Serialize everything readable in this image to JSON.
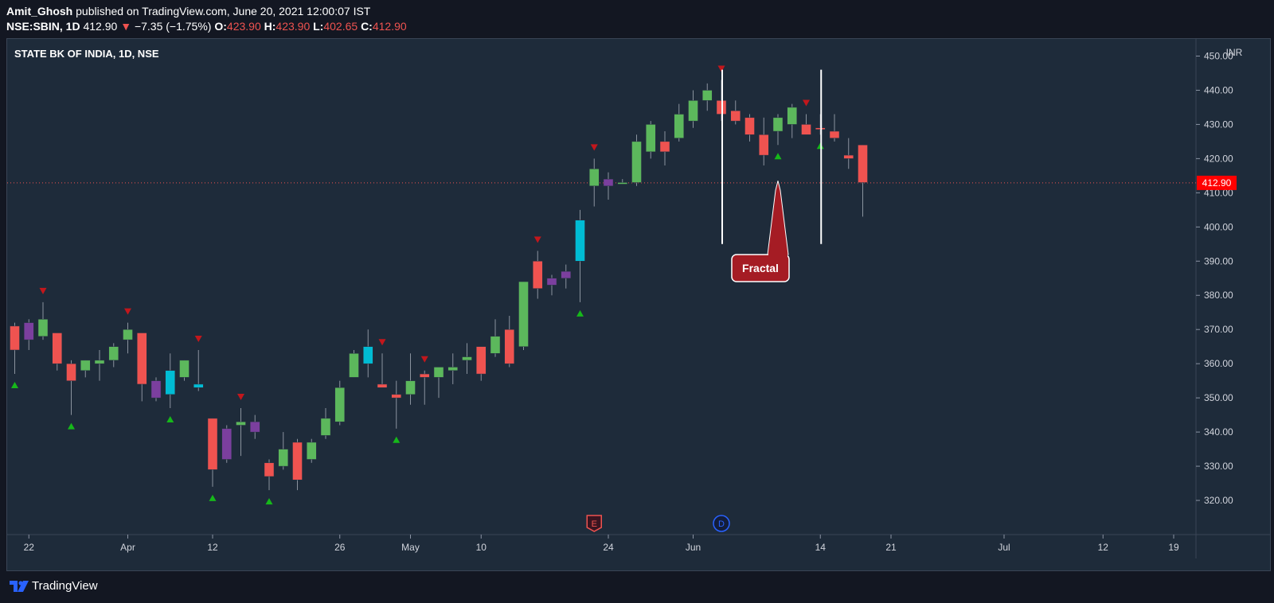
{
  "header": {
    "author": "Amit_Ghosh",
    "published_text": "published on TradingView.com, June 20, 2021 12:00:07 IST",
    "symbol": "NSE:SBIN, 1D",
    "last": "412.90",
    "change": "−7.35 (−1.75%)",
    "open_label": "O:",
    "open": "423.90",
    "high_label": "H:",
    "high": "423.90",
    "low_label": "L:",
    "low": "402.65",
    "close_label": "C:",
    "close": "412.90"
  },
  "footer": {
    "brand": "TradingView"
  },
  "colors": {
    "up": "#5cb85c",
    "down": "#ef5350",
    "purple": "#7b3f9e",
    "cyan": "#00bcd4",
    "bg": "#1e2b3a",
    "grid_text": "#d1d4dc",
    "price_tag": "#ff0000",
    "fractal_up": "#16b81a",
    "fractal_down": "#c2171c",
    "callout": "#a51c24"
  },
  "chart_data": {
    "type": "candlestick",
    "title": "STATE BK OF INDIA, 1D, NSE",
    "currency": "INR",
    "ylim": [
      310,
      455
    ],
    "y_ticks": [
      320,
      330,
      340,
      350,
      360,
      370,
      380,
      390,
      400,
      410,
      420,
      430,
      440,
      450
    ],
    "y_tick_labels": [
      "320.00",
      "330.00",
      "340.00",
      "350.00",
      "360.00",
      "370.00",
      "380.00",
      "390.00",
      "400.00",
      "410.00",
      "420.00",
      "430.00",
      "440.00",
      "450.00"
    ],
    "x_ticks": [
      {
        "label": "22",
        "index": 1
      },
      {
        "label": "Apr",
        "index": 8
      },
      {
        "label": "12",
        "index": 14
      },
      {
        "label": "26",
        "index": 23
      },
      {
        "label": "May",
        "index": 28
      },
      {
        "label": "10",
        "index": 33
      },
      {
        "label": "24",
        "index": 42
      },
      {
        "label": "Jun",
        "index": 48
      },
      {
        "label": "14",
        "index": 57
      },
      {
        "label": "21",
        "index": 62
      },
      {
        "label": "Jul",
        "index": 70
      },
      {
        "label": "12",
        "index": 77
      },
      {
        "label": "19",
        "index": 82
      }
    ],
    "last_price": 412.9,
    "last_price_label": "412.90",
    "candles": [
      {
        "o": 371,
        "h": 372,
        "l": 357,
        "c": 364,
        "k": "d"
      },
      {
        "o": 367,
        "h": 373,
        "l": 364,
        "c": 372,
        "k": "p"
      },
      {
        "o": 368,
        "h": 378,
        "l": 367,
        "c": 373,
        "k": "u"
      },
      {
        "o": 369,
        "h": 369,
        "l": 358,
        "c": 360,
        "k": "d"
      },
      {
        "o": 360,
        "h": 361,
        "l": 345,
        "c": 355,
        "k": "d"
      },
      {
        "o": 358,
        "h": 361,
        "l": 356,
        "c": 361,
        "k": "u"
      },
      {
        "o": 360,
        "h": 364,
        "l": 355,
        "c": 361,
        "k": "u"
      },
      {
        "o": 361,
        "h": 366,
        "l": 359,
        "c": 365,
        "k": "u"
      },
      {
        "o": 367,
        "h": 372,
        "l": 363,
        "c": 370,
        "k": "u"
      },
      {
        "o": 369,
        "h": 369,
        "l": 349,
        "c": 354,
        "k": "d"
      },
      {
        "o": 355,
        "h": 356,
        "l": 349,
        "c": 350,
        "k": "p"
      },
      {
        "o": 351,
        "h": 363,
        "l": 347,
        "c": 358,
        "k": "c"
      },
      {
        "o": 356,
        "h": 361,
        "l": 355,
        "c": 361,
        "k": "u"
      },
      {
        "o": 354,
        "h": 364,
        "l": 352,
        "c": 353,
        "k": "c"
      },
      {
        "o": 344,
        "h": 344,
        "l": 324,
        "c": 329,
        "k": "d"
      },
      {
        "o": 341,
        "h": 342,
        "l": 331,
        "c": 332,
        "k": "p"
      },
      {
        "o": 342,
        "h": 347,
        "l": 333,
        "c": 343,
        "k": "u"
      },
      {
        "o": 343,
        "h": 345,
        "l": 338,
        "c": 340,
        "k": "p"
      },
      {
        "o": 331,
        "h": 332,
        "l": 323,
        "c": 327,
        "k": "d"
      },
      {
        "o": 330,
        "h": 340,
        "l": 329,
        "c": 335,
        "k": "u"
      },
      {
        "o": 337,
        "h": 338,
        "l": 323,
        "c": 326,
        "k": "d"
      },
      {
        "o": 332,
        "h": 338,
        "l": 331,
        "c": 337,
        "k": "u"
      },
      {
        "o": 339,
        "h": 347,
        "l": 338,
        "c": 344,
        "k": "u"
      },
      {
        "o": 343,
        "h": 355,
        "l": 342,
        "c": 353,
        "k": "u"
      },
      {
        "o": 356,
        "h": 364,
        "l": 356,
        "c": 363,
        "k": "u"
      },
      {
        "o": 360,
        "h": 370,
        "l": 356,
        "c": 365,
        "k": "c"
      },
      {
        "o": 353,
        "h": 363,
        "l": 353,
        "c": 354,
        "k": "d"
      },
      {
        "o": 350,
        "h": 355,
        "l": 341,
        "c": 351,
        "k": "d"
      },
      {
        "o": 351,
        "h": 363,
        "l": 348,
        "c": 355,
        "k": "u"
      },
      {
        "o": 357,
        "h": 358,
        "l": 348,
        "c": 356,
        "k": "d"
      },
      {
        "o": 356,
        "h": 359,
        "l": 350,
        "c": 359,
        "k": "u"
      },
      {
        "o": 358,
        "h": 363,
        "l": 354,
        "c": 359,
        "k": "u"
      },
      {
        "o": 361,
        "h": 366,
        "l": 357,
        "c": 362,
        "k": "u"
      },
      {
        "o": 365,
        "h": 365,
        "l": 355,
        "c": 357,
        "k": "d"
      },
      {
        "o": 363,
        "h": 373,
        "l": 362,
        "c": 368,
        "k": "u"
      },
      {
        "o": 370,
        "h": 374,
        "l": 359,
        "c": 360,
        "k": "d"
      },
      {
        "o": 365,
        "h": 384,
        "l": 364,
        "c": 384,
        "k": "u"
      },
      {
        "o": 390,
        "h": 393,
        "l": 379,
        "c": 382,
        "k": "d"
      },
      {
        "o": 385,
        "h": 386,
        "l": 380,
        "c": 383,
        "k": "p"
      },
      {
        "o": 387,
        "h": 389,
        "l": 382,
        "c": 385,
        "k": "p"
      },
      {
        "o": 390,
        "h": 405,
        "l": 378,
        "c": 402,
        "k": "c"
      },
      {
        "o": 412,
        "h": 420,
        "l": 406,
        "c": 417,
        "k": "u"
      },
      {
        "o": 414,
        "h": 416,
        "l": 408,
        "c": 412,
        "k": "p"
      },
      {
        "o": 413,
        "h": 414,
        "l": 413,
        "c": 413,
        "k": "u"
      },
      {
        "o": 413,
        "h": 427,
        "l": 412,
        "c": 425,
        "k": "u"
      },
      {
        "o": 422,
        "h": 431,
        "l": 420,
        "c": 430,
        "k": "u"
      },
      {
        "o": 425,
        "h": 428,
        "l": 418,
        "c": 422,
        "k": "d"
      },
      {
        "o": 426,
        "h": 436,
        "l": 425,
        "c": 433,
        "k": "u"
      },
      {
        "o": 431,
        "h": 440,
        "l": 429,
        "c": 437,
        "k": "u"
      },
      {
        "o": 437,
        "h": 442,
        "l": 434,
        "c": 440,
        "k": "u"
      },
      {
        "o": 437,
        "h": 443,
        "l": 431,
        "c": 433,
        "k": "d"
      },
      {
        "o": 434,
        "h": 437,
        "l": 430,
        "c": 431,
        "k": "d"
      },
      {
        "o": 432,
        "h": 433,
        "l": 425,
        "c": 427,
        "k": "d"
      },
      {
        "o": 427,
        "h": 432,
        "l": 418,
        "c": 421,
        "k": "d"
      },
      {
        "o": 428,
        "h": 433,
        "l": 424,
        "c": 432,
        "k": "u"
      },
      {
        "o": 430,
        "h": 436,
        "l": 426,
        "c": 435,
        "k": "u"
      },
      {
        "o": 430,
        "h": 433,
        "l": 427,
        "c": 427,
        "k": "d"
      },
      {
        "o": 429,
        "h": 433,
        "l": 427,
        "c": 429,
        "k": "d"
      },
      {
        "o": 428,
        "h": 433,
        "l": 425,
        "c": 426,
        "k": "d"
      },
      {
        "o": 421,
        "h": 426,
        "l": 417,
        "c": 420,
        "k": "d"
      },
      {
        "o": 424,
        "h": 424,
        "l": 403,
        "c": 413,
        "k": "d"
      }
    ],
    "fractal_up_indices": [
      0,
      4,
      11,
      14,
      18,
      27,
      40,
      54,
      57
    ],
    "fractal_down_indices": [
      2,
      8,
      13,
      16,
      26,
      29,
      37,
      41,
      50,
      56
    ],
    "vertical_lines": [
      50,
      57
    ],
    "annotation": {
      "text": "Fractal",
      "target_index": 54
    },
    "event_markers": [
      {
        "label": "E",
        "index": 41
      },
      {
        "label": "D",
        "index": 50
      }
    ]
  }
}
